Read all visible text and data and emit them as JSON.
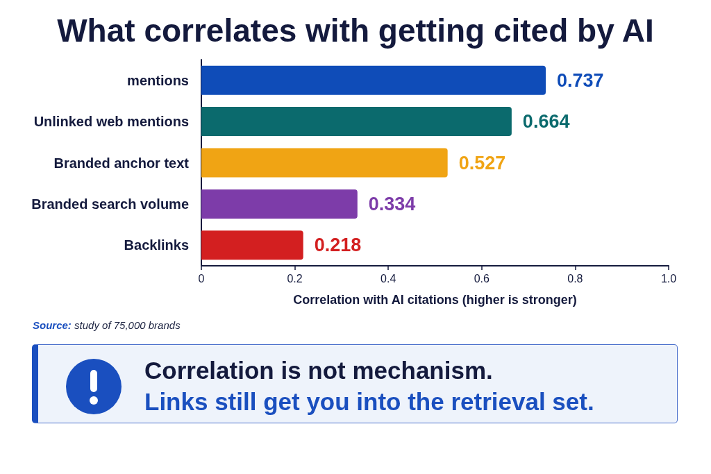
{
  "chart_data": {
    "type": "bar",
    "orientation": "horizontal",
    "title": "What correlates with getting cited by AI",
    "categories": [
      "mentions",
      "Unlinked web mentions",
      "Branded anchor text",
      "Branded search volume",
      "Backlinks"
    ],
    "values": [
      0.737,
      0.664,
      0.527,
      0.334,
      0.218
    ],
    "colors": [
      "#0f4cb8",
      "#0b6a6d",
      "#f0a414",
      "#7d3ca9",
      "#d31f20"
    ],
    "data_labels": true,
    "xlabel": "Correlation with AI citations (higher is stronger)",
    "xlim": [
      0,
      1
    ],
    "xticks": [
      0,
      0.2,
      0.4,
      0.6,
      0.8,
      {
        "value": 1,
        "label": "1.0"
      }
    ],
    "annotations": [
      "Source: study of 75,000 brands",
      "Correlation is not mechanism.",
      "Links still get you into the retrieval set."
    ]
  }
}
